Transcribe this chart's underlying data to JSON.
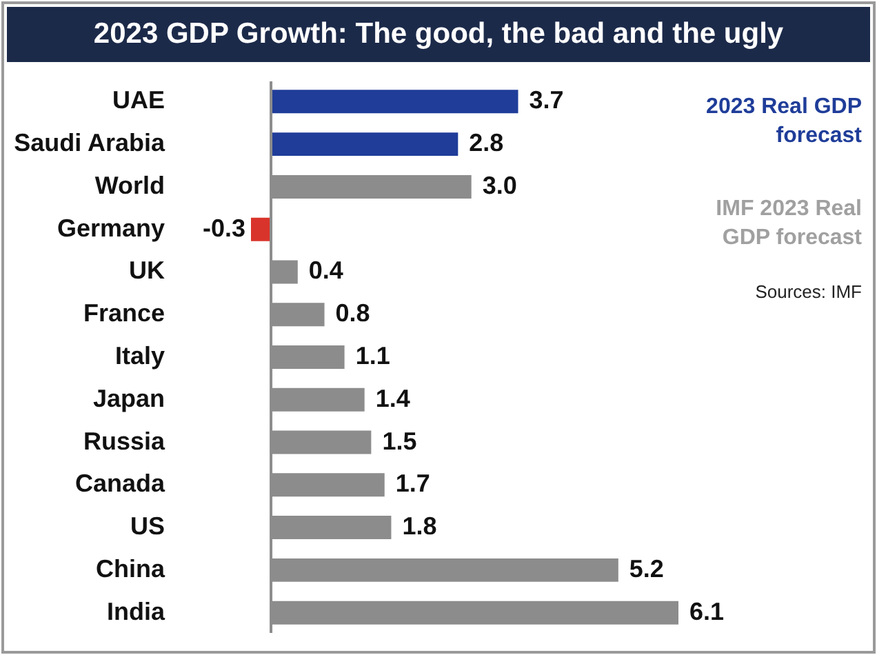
{
  "chart_data": {
    "type": "bar",
    "orientation": "horizontal",
    "title": "2023 GDP Growth: The good, the bad and the ugly",
    "categories": [
      "UAE",
      "Saudi Arabia",
      "World",
      "Germany",
      "UK",
      "France",
      "Italy",
      "Japan",
      "Russia",
      "Canada",
      "US",
      "China",
      "India"
    ],
    "values": [
      3.7,
      2.8,
      3.0,
      -0.3,
      0.4,
      0.8,
      1.1,
      1.4,
      1.5,
      1.7,
      1.8,
      5.2,
      6.1
    ],
    "colors": [
      "#1f3d99",
      "#1f3d99",
      "#8c8c8c",
      "#d9342b",
      "#8c8c8c",
      "#8c8c8c",
      "#8c8c8c",
      "#8c8c8c",
      "#8c8c8c",
      "#8c8c8c",
      "#8c8c8c",
      "#8c8c8c",
      "#8c8c8c"
    ],
    "value_labels": [
      "3.7",
      "2.8",
      "3.0",
      "-0.3",
      "0.4",
      "0.8",
      "1.1",
      "1.4",
      "1.5",
      "1.7",
      "1.8",
      "5.2",
      "6.1"
    ],
    "tick_labels": "y",
    "ref_lines": [
      {
        "axis": "x",
        "value": 0,
        "color": "#8c8c8c"
      }
    ],
    "annotations": [
      "2023 Real GDP forecast",
      "IMF 2023 Real GDP forecast",
      "Sources: IMF"
    ]
  }
}
